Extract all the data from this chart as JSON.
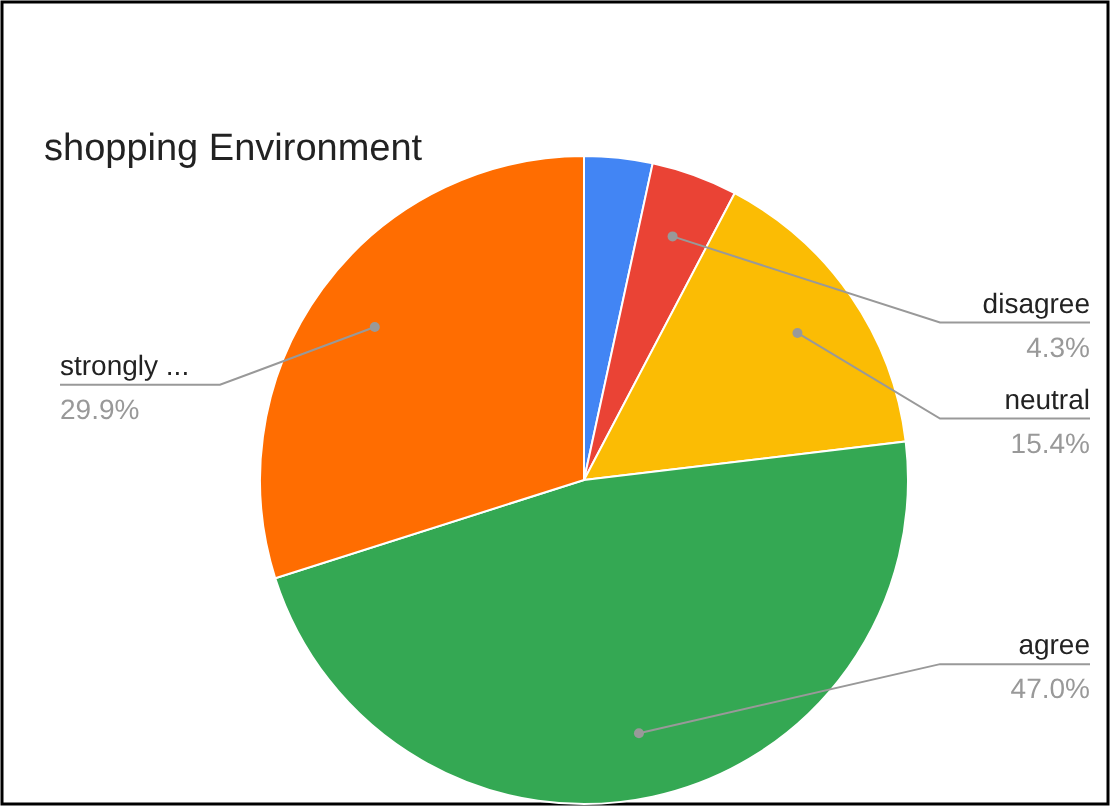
{
  "chart_data": {
    "type": "pie",
    "title": "shopping Environment",
    "categories": [
      null,
      "disagree",
      "neutral",
      "agree",
      "strongly ..."
    ],
    "values": [
      3.4,
      4.3,
      15.4,
      47.0,
      29.9
    ],
    "colors": [
      "#4285f4",
      "#ea4335",
      "#fbbc04",
      "#34a853",
      "#ff6d01"
    ],
    "value_labels": [
      null,
      "4.3%",
      "15.4%",
      "47.0%",
      "29.9%"
    ]
  }
}
